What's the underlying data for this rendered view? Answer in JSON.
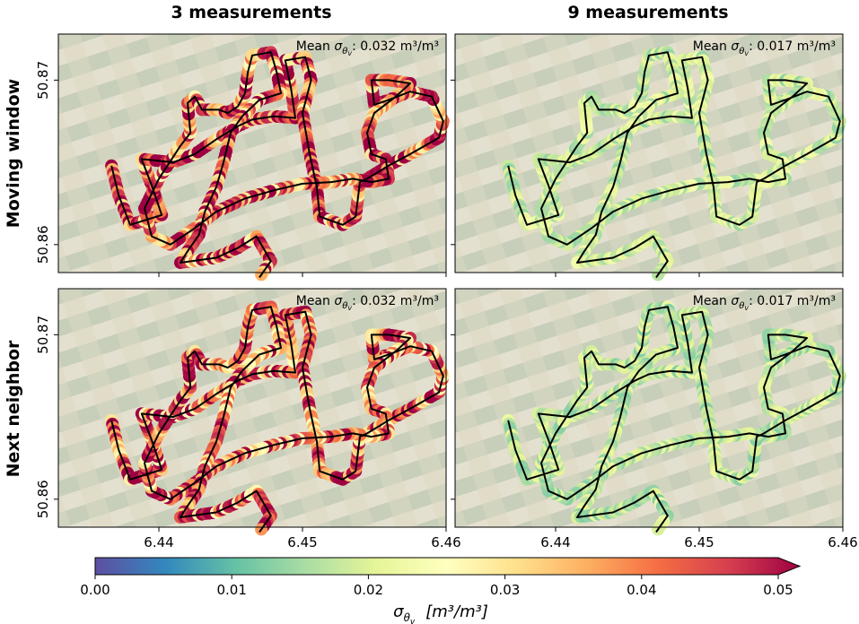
{
  "figure": {
    "columns": [
      "3 measurements",
      "9 measurements"
    ],
    "rows": [
      "Moving window",
      "Next neighbor"
    ]
  },
  "chart_data": [
    {
      "type": "scatter",
      "row": "Moving window",
      "column": "3 measurements",
      "annotation": {
        "prefix": "Mean ",
        "symbol": "σ",
        "sub": "θ",
        "subsub": "v",
        "suffix": ": 0.032 m³/m³"
      },
      "mean_sigma": 0.032,
      "xlim": [
        6.433,
        6.46
      ],
      "ylim": [
        50.8583,
        50.8728
      ],
      "xticks": [],
      "yticks": [
        "50.86",
        "50.87"
      ],
      "colormap": "Spectral_r",
      "dominant_level": 0.04
    },
    {
      "type": "scatter",
      "row": "Moving window",
      "column": "9 measurements",
      "annotation": {
        "prefix": "Mean ",
        "symbol": "σ",
        "sub": "θ",
        "subsub": "v",
        "suffix": ": 0.017 m³/m³"
      },
      "mean_sigma": 0.017,
      "xlim": [
        6.433,
        6.46
      ],
      "ylim": [
        50.8583,
        50.8728
      ],
      "xticks": [],
      "yticks": [],
      "colormap": "Spectral_r",
      "dominant_level": 0.018
    },
    {
      "type": "scatter",
      "row": "Next neighbor",
      "column": "3 measurements",
      "annotation": {
        "prefix": "Mean ",
        "symbol": "σ",
        "sub": "θ",
        "subsub": "v",
        "suffix": ": 0.032 m³/m³"
      },
      "mean_sigma": 0.032,
      "xlim": [
        6.433,
        6.46
      ],
      "ylim": [
        50.8583,
        50.8728
      ],
      "xticks": [
        "6.44",
        "6.45",
        "6.46"
      ],
      "yticks": [
        "50.86",
        "50.87"
      ],
      "colormap": "Spectral_r",
      "dominant_level": 0.038
    },
    {
      "type": "scatter",
      "row": "Next neighbor",
      "column": "9 measurements",
      "annotation": {
        "prefix": "Mean ",
        "symbol": "σ",
        "sub": "θ",
        "subsub": "v",
        "suffix": ": 0.017 m³/m³"
      },
      "mean_sigma": 0.017,
      "xlim": [
        6.433,
        6.46
      ],
      "ylim": [
        50.8583,
        50.8728
      ],
      "xticks": [
        "6.44",
        "6.45",
        "6.46"
      ],
      "yticks": [],
      "colormap": "Spectral_r",
      "dominant_level": 0.017
    }
  ],
  "colorbar": {
    "min": 0.0,
    "max": 0.05,
    "extend": "max",
    "ticks": [
      "0.00",
      "0.01",
      "0.02",
      "0.03",
      "0.04",
      "0.05"
    ],
    "label_symbol": "σ",
    "label_sub": "θ",
    "label_subsub": "v",
    "label_units": "[m³/m³]",
    "colors": [
      "#5e4fa2",
      "#3288bd",
      "#66c2a5",
      "#abdda4",
      "#e6f598",
      "#ffffbf",
      "#fee08b",
      "#fdae61",
      "#f46d43",
      "#d53e4f",
      "#9e0142"
    ]
  },
  "route": {
    "points": [
      [
        6.4367,
        50.8648
      ],
      [
        6.4372,
        50.863
      ],
      [
        6.438,
        50.8612
      ],
      [
        6.4402,
        50.8618
      ],
      [
        6.4395,
        50.8636
      ],
      [
        6.4388,
        50.8652
      ],
      [
        6.441,
        50.865
      ],
      [
        6.4425,
        50.8655
      ],
      [
        6.444,
        50.8664
      ],
      [
        6.4455,
        50.8672
      ],
      [
        6.4465,
        50.8676
      ],
      [
        6.448,
        50.8678
      ],
      [
        6.4495,
        50.8677
      ],
      [
        6.4492,
        50.8695
      ],
      [
        6.4488,
        50.8712
      ],
      [
        6.4502,
        50.8714
      ],
      [
        6.4506,
        50.87
      ],
      [
        6.45,
        50.868
      ],
      [
        6.4505,
        50.8655
      ],
      [
        6.451,
        50.8635
      ],
      [
        6.4512,
        50.8617
      ],
      [
        6.4528,
        50.8612
      ],
      [
        6.4537,
        50.8617
      ],
      [
        6.454,
        50.8638
      ],
      [
        6.4545,
        50.864
      ],
      [
        6.456,
        50.8648
      ],
      [
        6.4575,
        50.8655
      ],
      [
        6.4585,
        50.866
      ],
      [
        6.4595,
        50.8665
      ],
      [
        6.4598,
        50.8675
      ],
      [
        6.459,
        50.869
      ],
      [
        6.4575,
        50.8693
      ],
      [
        6.456,
        50.8688
      ],
      [
        6.455,
        50.8685
      ],
      [
        6.4548,
        50.87
      ],
      [
        6.456,
        50.87
      ],
      [
        6.4575,
        50.8698
      ],
      [
        6.4565,
        50.869
      ],
      [
        6.455,
        50.868
      ],
      [
        6.4545,
        50.8668
      ],
      [
        6.4548,
        50.8655
      ],
      [
        6.4558,
        50.8652
      ],
      [
        6.456,
        50.864
      ],
      [
        6.4548,
        50.8638
      ],
      [
        6.4535,
        50.864
      ],
      [
        6.452,
        50.8638
      ],
      [
        6.45,
        50.8637
      ],
      [
        6.448,
        50.8633
      ],
      [
        6.446,
        50.8628
      ],
      [
        6.444,
        50.862
      ],
      [
        6.4425,
        50.861
      ],
      [
        6.4408,
        50.86
      ],
      [
        6.4395,
        50.8605
      ],
      [
        6.439,
        50.8622
      ],
      [
        6.44,
        50.864
      ],
      [
        6.4415,
        50.866
      ],
      [
        6.4422,
        50.8668
      ],
      [
        6.442,
        50.8686
      ],
      [
        6.4425,
        50.869
      ],
      [
        6.443,
        50.8682
      ],
      [
        6.4442,
        50.8682
      ],
      [
        6.4448,
        50.868
      ],
      [
        6.4455,
        50.8684
      ],
      [
        6.446,
        50.8692
      ],
      [
        6.4462,
        50.8705
      ],
      [
        6.4465,
        50.8715
      ],
      [
        6.4478,
        50.8717
      ],
      [
        6.4482,
        50.8705
      ],
      [
        6.4485,
        50.8692
      ],
      [
        6.447,
        50.8688
      ],
      [
        6.4458,
        50.8678
      ],
      [
        6.445,
        50.8668
      ],
      [
        6.4445,
        50.865
      ],
      [
        6.444,
        50.8635
      ],
      [
        6.4432,
        50.862
      ],
      [
        6.4428,
        50.8606
      ],
      [
        6.442,
        50.8596
      ],
      [
        6.4415,
        50.8589
      ],
      [
        6.444,
        50.8592
      ],
      [
        6.4455,
        50.8598
      ],
      [
        6.4468,
        50.8605
      ],
      [
        6.4478,
        50.859
      ],
      [
        6.447,
        50.858
      ]
    ]
  }
}
